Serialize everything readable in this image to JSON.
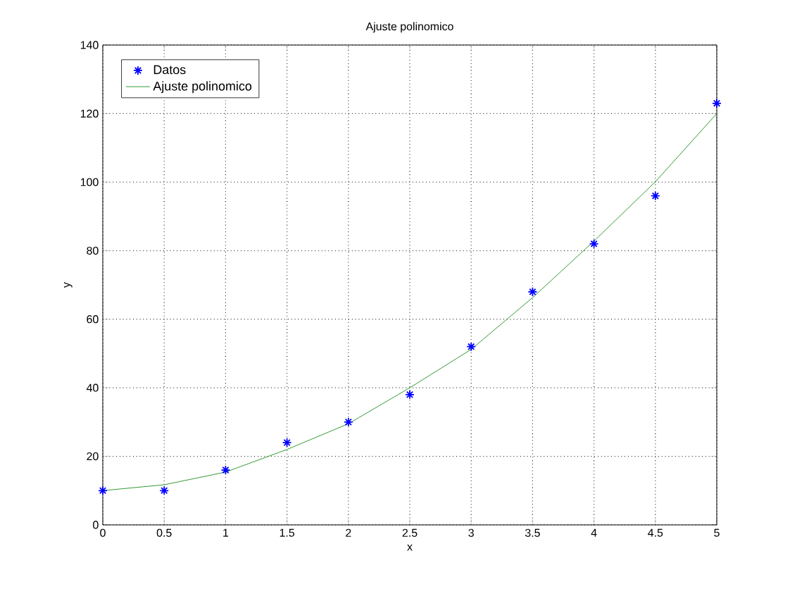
{
  "chart_data": {
    "type": "scatter",
    "title": "Ajuste polinomico",
    "xlabel": "x",
    "ylabel": "y",
    "series": [
      {
        "name": "Datos",
        "color": "#0000ff",
        "marker": "cross",
        "x": [
          0,
          0.5,
          1,
          1.5,
          2,
          2.5,
          3,
          3.5,
          4,
          4.5,
          5
        ],
        "values": [
          10,
          10,
          16,
          24,
          30,
          38,
          52,
          68,
          82,
          96,
          123
        ]
      },
      {
        "name": "Ajuste polinomico",
        "type": "line",
        "color": "#008000",
        "marker": "none",
        "line_style": "solid",
        "x": [
          0,
          0.5,
          1,
          1.5,
          2,
          2.5,
          3,
          3.5,
          4,
          4.5,
          5
        ],
        "values": [
          10,
          11.7,
          15.4,
          22,
          29.5,
          40,
          51.2,
          66.3,
          82.8,
          100.1,
          120
        ]
      }
    ],
    "xlim": [
      0,
      5
    ],
    "ylim": [
      0,
      140
    ],
    "xticks": [
      0,
      0.5,
      1,
      1.5,
      2,
      2.5,
      3,
      3.5,
      4,
      4.5,
      5
    ],
    "yticks": [
      0,
      20,
      40,
      60,
      80,
      100,
      120,
      140
    ],
    "grid": true,
    "legend": "top left"
  }
}
